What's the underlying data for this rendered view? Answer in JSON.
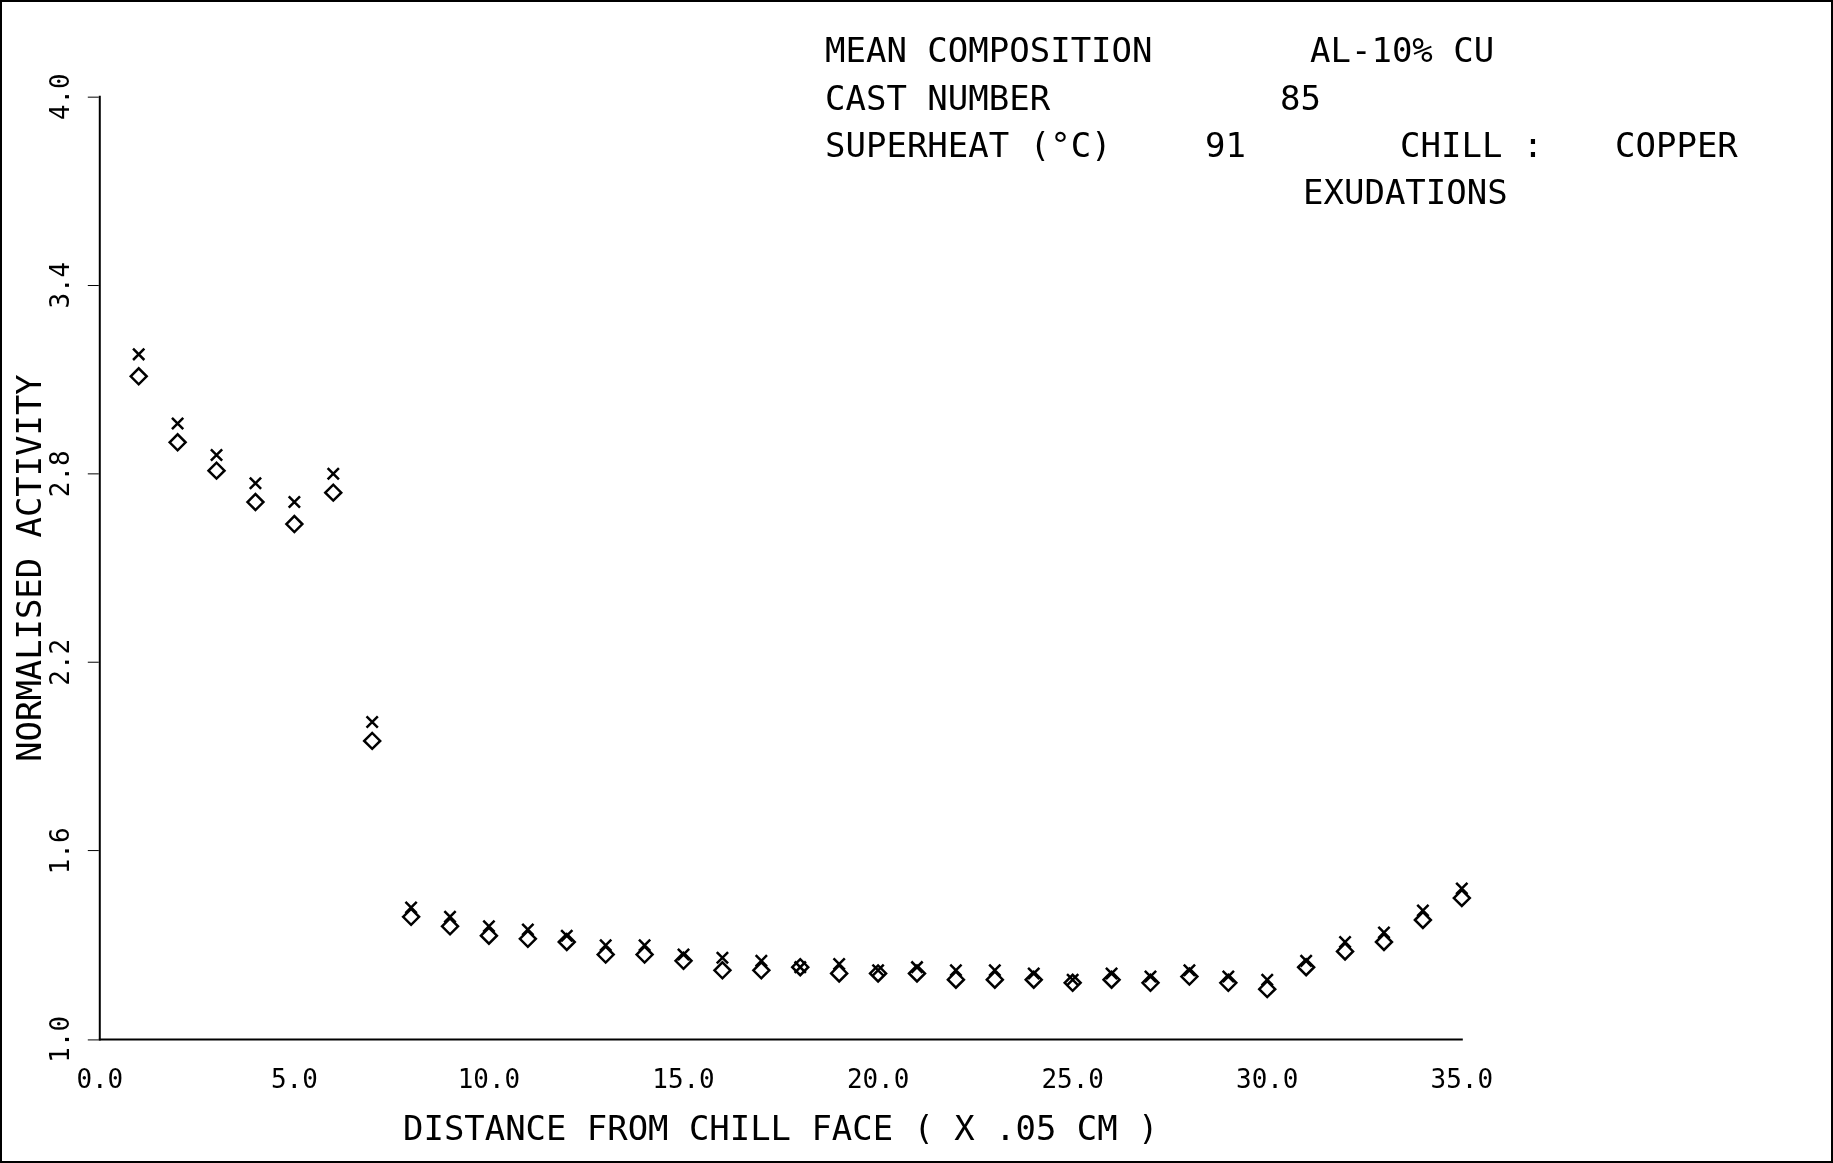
{
  "chart_data": {
    "type": "scatter",
    "xlabel": "DISTANCE FROM CHILL FACE ( X .05 CM )",
    "ylabel": "NORMALISED ACTIVITY",
    "annotations": [
      "MEAN COMPOSITION",
      "AL-10% CU",
      "CAST NUMBER",
      "85",
      "SUPERHEAT (°C)",
      "91",
      "CHILL :",
      "COPPER",
      "EXUDATIONS"
    ],
    "x": [
      1,
      2,
      3,
      4,
      5,
      6,
      7,
      8,
      9,
      10,
      11,
      12,
      13,
      14,
      15,
      16,
      17,
      18,
      19,
      20,
      21,
      22,
      23,
      24,
      25,
      26,
      27,
      28,
      29,
      30,
      31,
      32,
      33,
      34,
      35
    ],
    "series": [
      {
        "color": "#000000",
        "marker": "cross",
        "values": [
          3.18,
          2.96,
          2.86,
          2.77,
          2.71,
          2.8,
          2.01,
          1.42,
          1.39,
          1.36,
          1.35,
          1.33,
          1.3,
          1.3,
          1.27,
          1.26,
          1.25,
          1.23,
          1.24,
          1.22,
          1.23,
          1.22,
          1.22,
          1.21,
          1.19,
          1.21,
          1.2,
          1.22,
          1.2,
          1.19,
          1.25,
          1.31,
          1.34,
          1.41,
          1.48
        ]
      },
      {
        "color": "#000000",
        "marker": "diamond",
        "values": [
          3.11,
          2.9,
          2.81,
          2.71,
          2.64,
          2.74,
          1.95,
          1.39,
          1.36,
          1.33,
          1.32,
          1.31,
          1.27,
          1.27,
          1.25,
          1.22,
          1.22,
          1.23,
          1.21,
          1.21,
          1.21,
          1.19,
          1.19,
          1.19,
          1.18,
          1.19,
          1.18,
          1.2,
          1.18,
          1.16,
          1.23,
          1.28,
          1.31,
          1.38,
          1.45
        ]
      }
    ],
    "xlim": [
      0,
      35
    ],
    "ylim": [
      1,
      4
    ],
    "xticks": [
      {
        "value": 0,
        "label": "0.0"
      },
      {
        "value": 5,
        "label": "5.0"
      },
      {
        "value": 10,
        "label": "10.0"
      },
      {
        "value": 15,
        "label": "15.0"
      },
      {
        "value": 20,
        "label": "20.0"
      },
      {
        "value": 25,
        "label": "25.0"
      },
      {
        "value": 30,
        "label": "30.0"
      },
      {
        "value": 35,
        "label": "35.0"
      }
    ],
    "yticks": [
      {
        "value": 1,
        "label": "1.0"
      },
      {
        "value": 1.6,
        "label": "1.6"
      },
      {
        "value": 2.2,
        "label": "2.2"
      },
      {
        "value": 2.8,
        "label": "2.8"
      },
      {
        "value": 3.4,
        "label": "3.4"
      },
      {
        "value": 4,
        "label": "4.0"
      }
    ],
    "grid": false,
    "legend": false
  }
}
